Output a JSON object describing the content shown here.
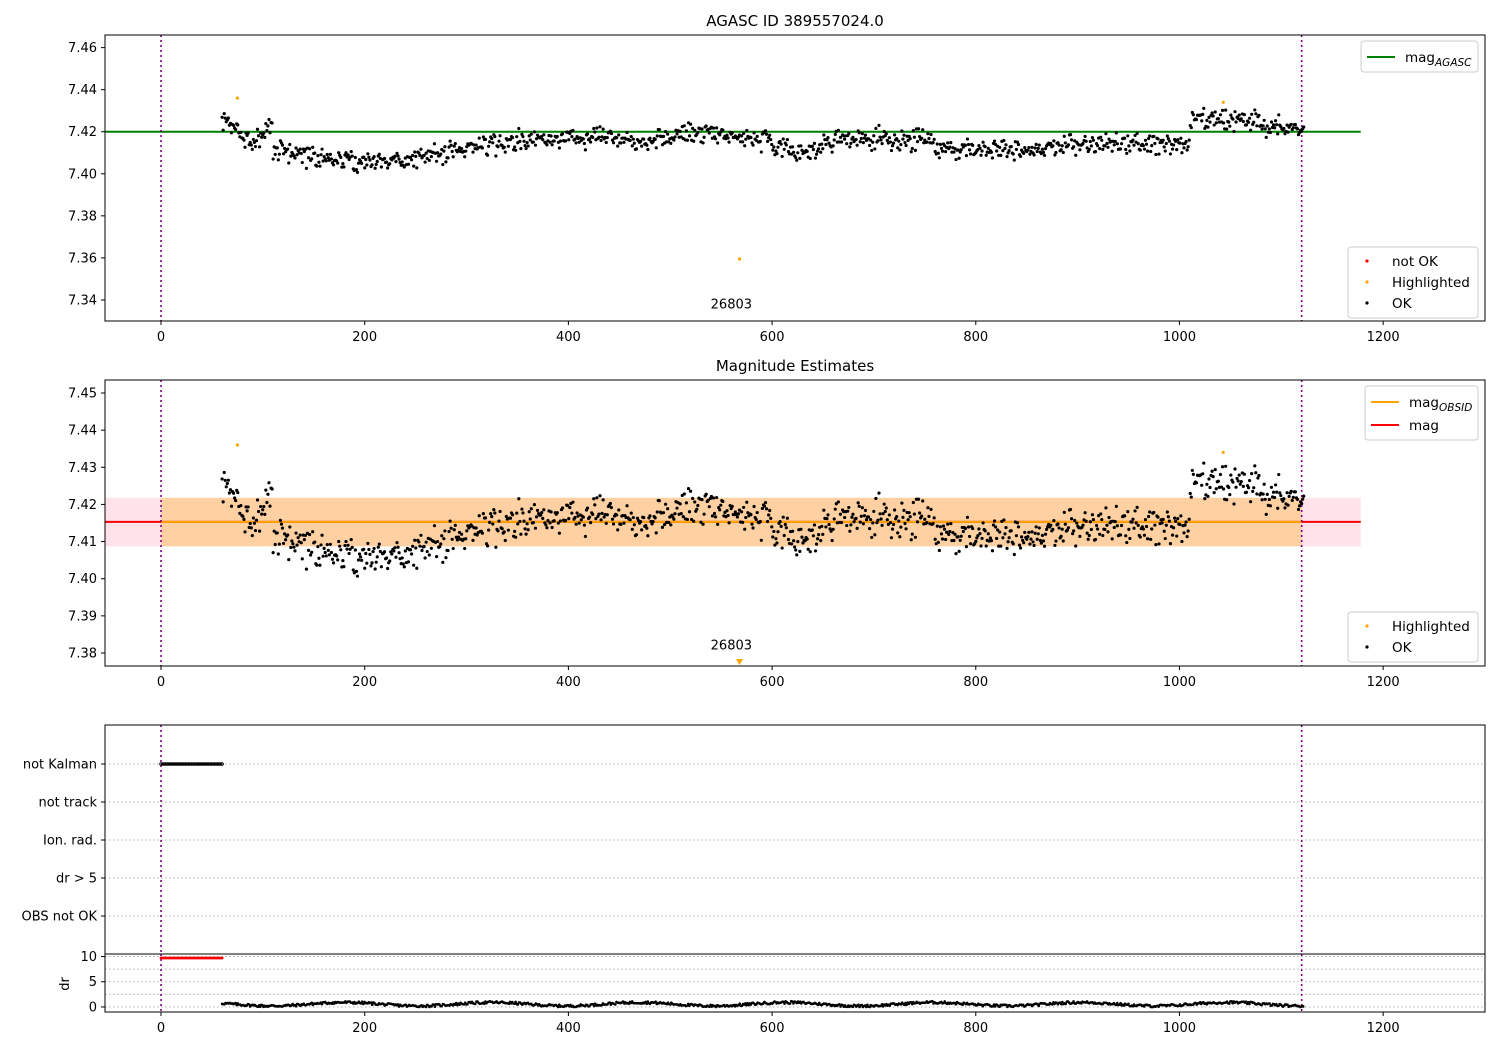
{
  "chart_data": [
    {
      "type": "scatter",
      "id": "p1",
      "title": "AGASC ID 389557024.0",
      "xlim": [
        -55,
        1300
      ],
      "ylim": [
        7.33,
        7.466
      ],
      "xticks": [
        0,
        200,
        400,
        600,
        800,
        1000,
        1200
      ],
      "xtick_labels": [
        "0",
        "200",
        "400",
        "600",
        "800",
        "1000",
        "1200"
      ],
      "yticks": [
        7.34,
        7.36,
        7.38,
        7.4,
        7.42,
        7.44,
        7.46
      ],
      "ytick_labels": [
        "7.34",
        "7.36",
        "7.38",
        "7.40",
        "7.42",
        "7.44",
        "7.46"
      ],
      "vlines": [
        0,
        1120
      ],
      "obs_label": {
        "text": "26803",
        "x": 560,
        "y": 7.3335
      },
      "hline": {
        "name": "mag_AGASC",
        "y": 7.42,
        "x_range": [
          -55,
          1178
        ],
        "color": "#008000"
      },
      "series": [
        {
          "name": "not OK",
          "color": "#ff0000",
          "x": [],
          "y": []
        },
        {
          "name": "Highlighted",
          "color": "#ffa500",
          "x": [
            75,
            568,
            1043
          ],
          "y": [
            7.436,
            7.3595,
            7.434
          ]
        },
        {
          "name": "OK",
          "color": "#000000",
          "model": "ok1",
          "x_range": [
            60,
            1122
          ],
          "n": 1040
        }
      ],
      "legend_lines": [
        {
          "label": "mag",
          "sub": "AGASC",
          "color": "#008000"
        }
      ],
      "legend_points": [
        {
          "label": "not OK",
          "color": "#ff0000"
        },
        {
          "label": "Highlighted",
          "color": "#ffa500"
        },
        {
          "label": "OK",
          "color": "#000000"
        }
      ]
    },
    {
      "type": "scatter",
      "id": "p2",
      "title": "Magnitude Estimates",
      "xlim": [
        -55,
        1300
      ],
      "ylim": [
        7.3765,
        7.4535
      ],
      "xticks": [
        0,
        200,
        400,
        600,
        800,
        1000,
        1200
      ],
      "xtick_labels": [
        "0",
        "200",
        "400",
        "600",
        "800",
        "1000",
        "1200"
      ],
      "yticks": [
        7.38,
        7.39,
        7.4,
        7.41,
        7.42,
        7.43,
        7.44,
        7.45
      ],
      "ytick_labels": [
        "7.38",
        "7.39",
        "7.40",
        "7.41",
        "7.42",
        "7.43",
        "7.44",
        "7.45"
      ],
      "vlines": [
        0,
        1120
      ],
      "obs_label": {
        "text": "26803",
        "x": 560,
        "y": 7.379
      },
      "bands": [
        {
          "name": "mag range",
          "y": [
            7.4087,
            7.4218
          ],
          "x_range": [
            -55,
            1178
          ],
          "color": "#ffc0cb",
          "opacity": 0.45
        },
        {
          "name": "mag_OBSID range",
          "y": [
            7.4087,
            7.4218
          ],
          "x_range": [
            0,
            1120
          ],
          "color": "#ffa500",
          "opacity": 0.3
        }
      ],
      "hlines": [
        {
          "name": "mag",
          "y": 7.4153,
          "x_range": [
            -55,
            1178
          ],
          "color": "#ff0000"
        },
        {
          "name": "mag_OBSID",
          "y": 7.4153,
          "x_range": [
            0,
            1120
          ],
          "color": "#ffa500"
        }
      ],
      "series": [
        {
          "name": "Highlighted",
          "color": "#ffa500",
          "x": [
            75,
            1043
          ],
          "y": [
            7.436,
            7.434
          ]
        },
        {
          "name": "OK",
          "color": "#000000",
          "model": "ok1",
          "x_range": [
            60,
            1122
          ],
          "n": 1040
        }
      ],
      "marker_below": {
        "x": 568,
        "color": "#ffa500"
      },
      "legend_lines": [
        {
          "label": "mag",
          "sub": "OBSID",
          "color": "#ffa500"
        },
        {
          "label": "mag",
          "sub": "",
          "color": "#ff0000"
        }
      ],
      "legend_points": [
        {
          "label": "Highlighted",
          "color": "#ffa500"
        },
        {
          "label": "OK",
          "color": "#000000"
        }
      ]
    },
    {
      "type": "scatter",
      "id": "p3",
      "title": "",
      "xlim": [
        -55,
        1300
      ],
      "categories": [
        "not Kalman",
        "not track",
        "Ion. rad.",
        "dr > 5",
        "OBS not OK"
      ],
      "vlines": [
        0,
        1120
      ],
      "flags": [
        {
          "category": "not Kalman",
          "x_range": [
            0,
            60
          ],
          "color": "#000000"
        }
      ]
    },
    {
      "type": "scatter",
      "id": "p4",
      "title": "",
      "ylabel": "dr",
      "xlim": [
        -55,
        1300
      ],
      "ylim": [
        -1,
        10.5
      ],
      "xticks": [
        0,
        200,
        400,
        600,
        800,
        1000,
        1200
      ],
      "xtick_labels": [
        "0",
        "200",
        "400",
        "600",
        "800",
        "1000",
        "1200"
      ],
      "yticks": [
        0,
        5,
        10
      ],
      "ytick_labels": [
        "0",
        "5",
        "10"
      ],
      "grid_y": [
        0,
        2.5,
        5,
        7.5,
        10
      ],
      "vlines": [
        0,
        1120
      ],
      "series": [
        {
          "name": "dr clipped",
          "color": "#ff0000",
          "x_range": [
            0,
            60
          ],
          "y": 9.7
        },
        {
          "name": "dr",
          "color": "#000000",
          "x_range": [
            60,
            1122
          ],
          "y_range": [
            0,
            1.3
          ]
        }
      ]
    }
  ]
}
